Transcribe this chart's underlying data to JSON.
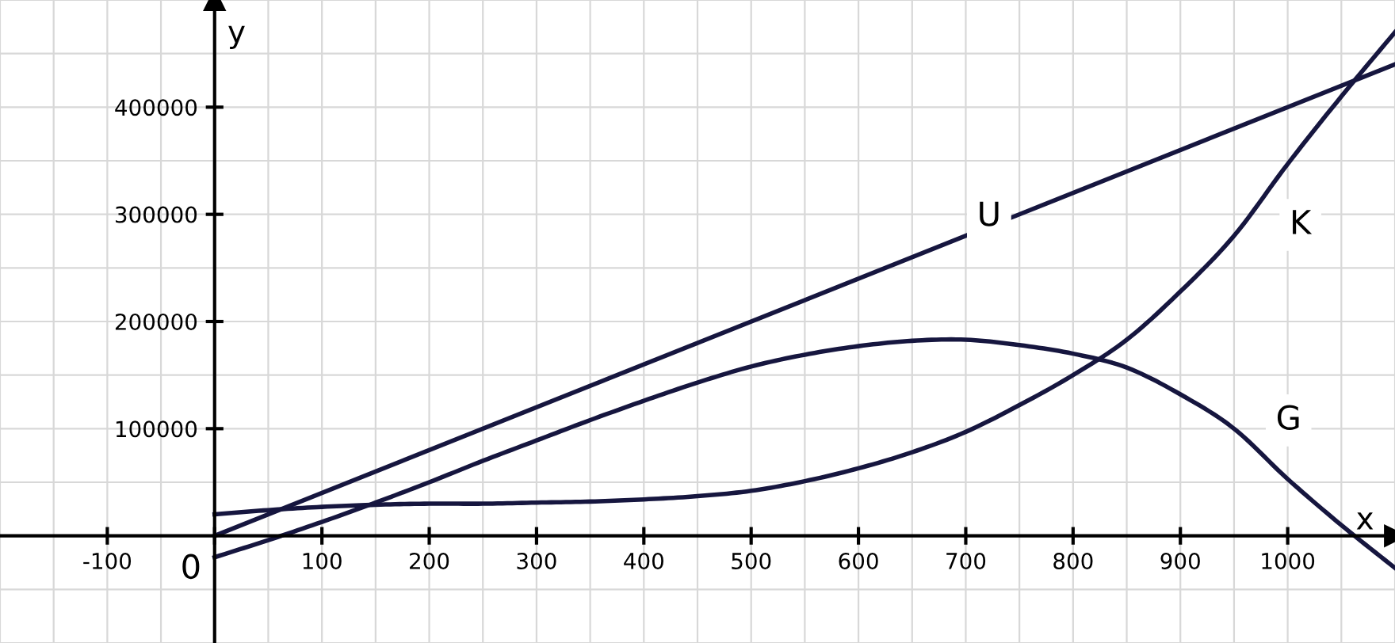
{
  "chart_data": {
    "type": "line",
    "xlabel": "x",
    "ylabel": "y",
    "xlim": [
      -200,
      1100
    ],
    "ylim": [
      -100000,
      500000
    ],
    "annotations": [
      {
        "text": "0",
        "x": 0,
        "y": 0
      }
    ],
    "xticks": [
      -100,
      {
        "value": 0,
        "label": null
      },
      100,
      200,
      300,
      400,
      500,
      600,
      700,
      800,
      900,
      1000
    ],
    "yticks": [
      100000,
      200000,
      300000,
      400000
    ],
    "grid": true,
    "legend": false,
    "marker": "none",
    "line_style": "solid",
    "series": [
      {
        "name": "U",
        "color": "#16163f",
        "x": [
          0,
          1100
        ],
        "values": [
          0,
          440000
        ]
      },
      {
        "name": "K",
        "color": "#16163f",
        "x": [
          0,
          50,
          100,
          150,
          200,
          250,
          300,
          350,
          400,
          450,
          500,
          550,
          600,
          650,
          700,
          750,
          800,
          850,
          900,
          950,
          1000,
          1050,
          1100
        ],
        "values": [
          20000,
          24000,
          27000,
          29000,
          30000,
          30000,
          31000,
          32000,
          34000,
          37000,
          42000,
          51000,
          63000,
          78000,
          97000,
          122000,
          150000,
          183000,
          228000,
          280000,
          347000,
          410000,
          470000
        ]
      },
      {
        "name": "G",
        "color": "#16163f",
        "x": [
          0,
          50,
          100,
          150,
          200,
          250,
          300,
          350,
          400,
          450,
          500,
          550,
          600,
          650,
          700,
          750,
          800,
          850,
          900,
          950,
          1000,
          1050,
          1100
        ],
        "values": [
          -20000,
          -4000,
          13000,
          31000,
          50000,
          70000,
          89000,
          108000,
          126000,
          143000,
          158000,
          169000,
          177000,
          182000,
          183000,
          178000,
          170000,
          157000,
          132000,
          100000,
          53000,
          10000,
          -30000
        ]
      }
    ]
  }
}
